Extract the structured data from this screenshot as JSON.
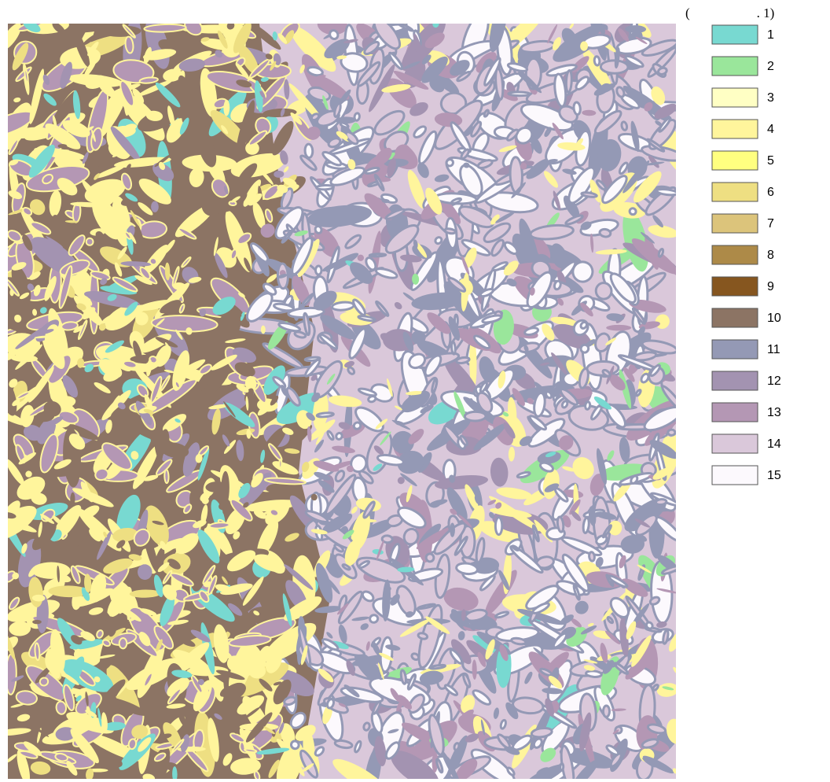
{
  "header": "(                    . 1)",
  "legend": [
    {
      "label": "1",
      "color": "#78d9d1"
    },
    {
      "label": "2",
      "color": "#9ae69b"
    },
    {
      "label": "3",
      "color": "#ffffc4"
    },
    {
      "label": "4",
      "color": "#fff59c"
    },
    {
      "label": "5",
      "color": "#ffff80"
    },
    {
      "label": "6",
      "color": "#eedf82"
    },
    {
      "label": "7",
      "color": "#dcc47b"
    },
    {
      "label": "8",
      "color": "#ad8a48"
    },
    {
      "label": "9",
      "color": "#86561f"
    },
    {
      "label": "10",
      "color": "#8c7464"
    },
    {
      "label": "11",
      "color": "#9499b5"
    },
    {
      "label": "12",
      "color": "#a393b1"
    },
    {
      "label": "13",
      "color": "#b497b4"
    },
    {
      "label": "14",
      "color": "#dac8da"
    },
    {
      "label": "15",
      "color": "#fcf9fd"
    }
  ]
}
